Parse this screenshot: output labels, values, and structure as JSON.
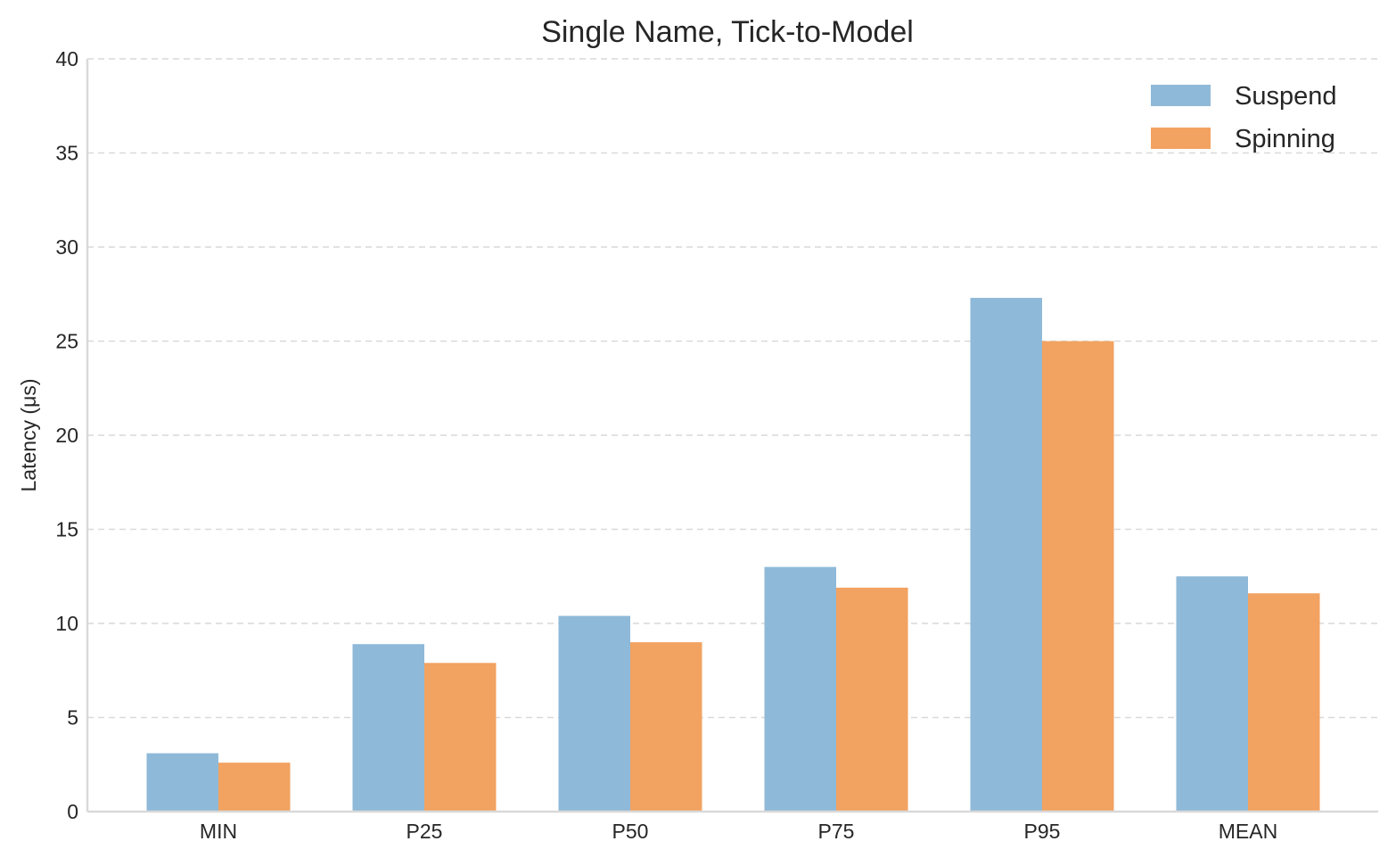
{
  "chart_data": {
    "type": "bar",
    "title": "Single Name, Tick-to-Model",
    "xlabel": "",
    "ylabel": "Latency (μs)",
    "categories": [
      "MIN",
      "P25",
      "P50",
      "P75",
      "P95",
      "MEAN"
    ],
    "series": [
      {
        "name": "Suspend",
        "color": "#8fb9d8",
        "values": [
          3.1,
          8.9,
          10.4,
          13.0,
          27.3,
          12.5
        ]
      },
      {
        "name": "Spinning",
        "color": "#f2a261",
        "values": [
          2.6,
          7.9,
          9.0,
          11.9,
          25.0,
          11.6
        ]
      }
    ],
    "ylim": [
      0,
      40
    ],
    "yticks": [
      "0",
      "5",
      "10",
      "15",
      "20",
      "25",
      "30",
      "35",
      "40"
    ],
    "grid": "y-dashed",
    "legend_position": "top-right"
  }
}
